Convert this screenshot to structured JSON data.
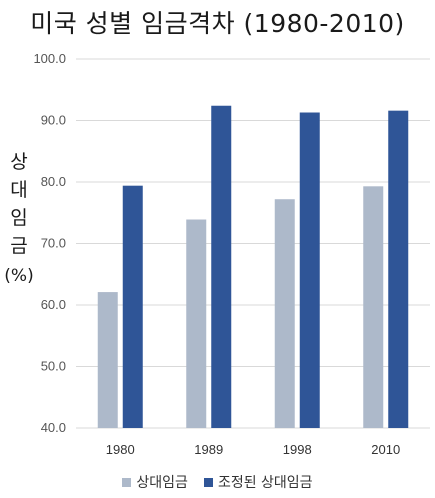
{
  "chart_data": {
    "type": "bar",
    "title": "미국 성별 임금격차 (1980-2010)",
    "ylabel_chars": [
      "상",
      "대",
      "임",
      "금"
    ],
    "ylabel_unit": "(%)",
    "categories": [
      "1980",
      "1989",
      "1998",
      "2010"
    ],
    "series": [
      {
        "name": "상대임금",
        "color": "#adb9ca",
        "values": [
          62.1,
          73.9,
          77.2,
          79.3
        ]
      },
      {
        "name": "조정된 상대임금",
        "color": "#2f5597",
        "values": [
          79.4,
          92.4,
          91.3,
          91.6
        ]
      }
    ],
    "ylim": [
      40,
      100
    ],
    "yticks": [
      "40.0",
      "50.0",
      "60.0",
      "70.0",
      "80.0",
      "90.0",
      "100.0"
    ],
    "grid": true,
    "legend_position": "bottom"
  }
}
